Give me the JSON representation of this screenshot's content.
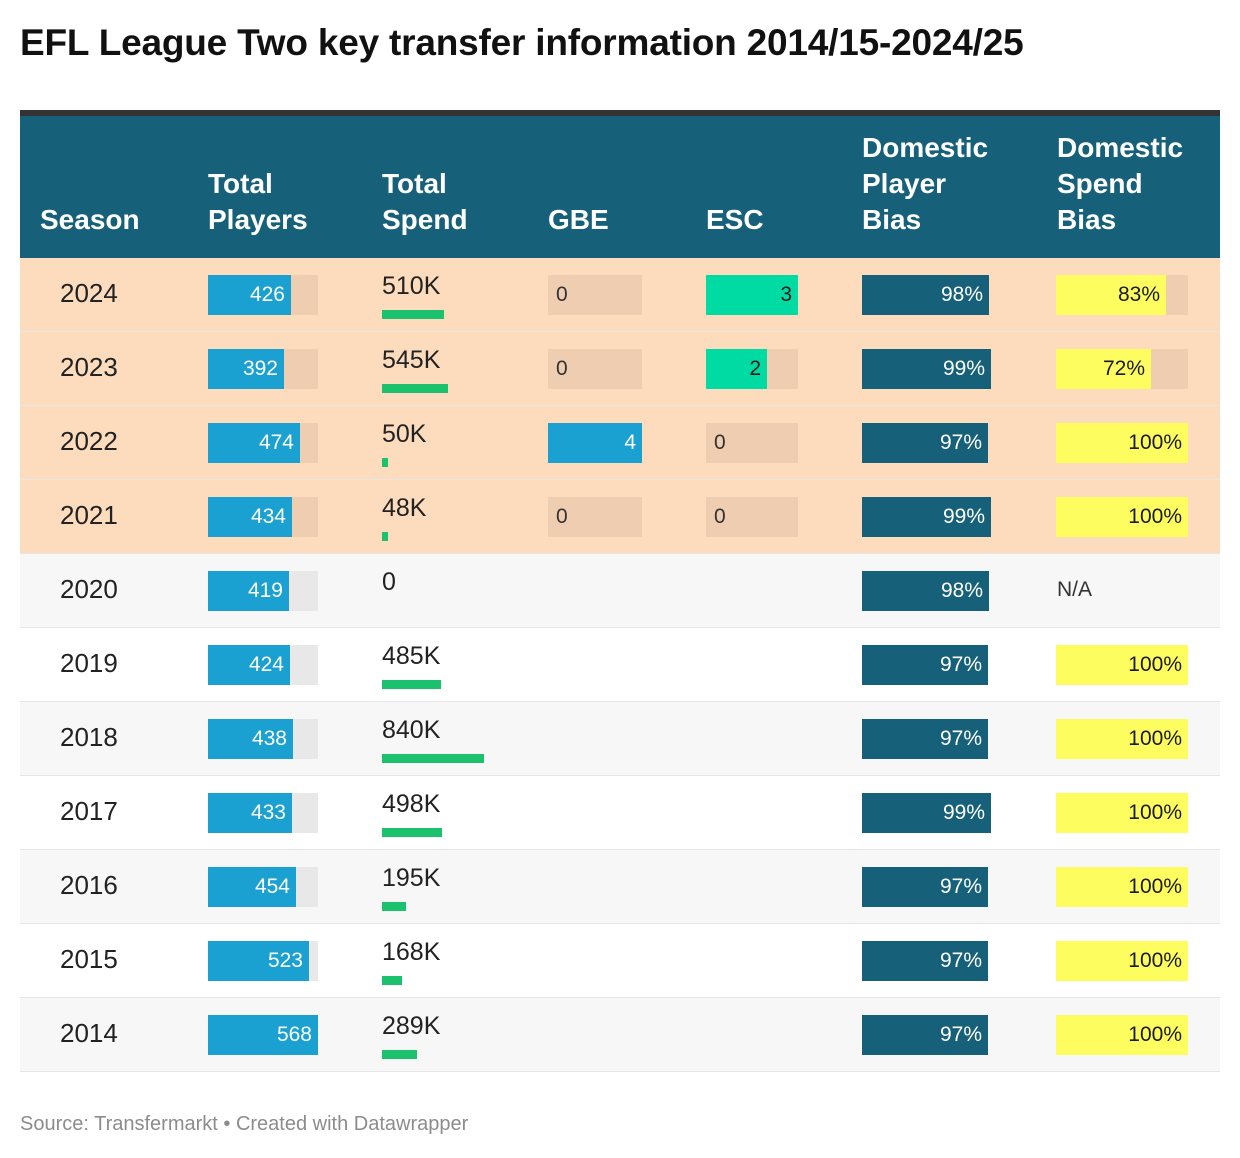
{
  "title": "EFL League Two key transfer information 2014/15-2024/25",
  "source": "Source: Transfermarkt • Created with Datawrapper",
  "columns": {
    "season": "Season",
    "total_players": [
      "Total",
      "Players"
    ],
    "total_spend": [
      "Total",
      "Spend"
    ],
    "gbe": "GBE",
    "esc": "ESC",
    "domestic_player_bias": [
      "Domestic",
      "Player",
      "Bias"
    ],
    "domestic_spend_bias": [
      "Domestic",
      "Spend",
      "Bias"
    ]
  },
  "colors": {
    "header_bg": "#17607a",
    "highlight_row": "#fddcbe",
    "alt_row": "#f7f7f7",
    "players_bar": "#1aa1d1",
    "spend_bar": "#1cc16d",
    "gbe_bar": "#1aa1d1",
    "esc_bar": "#00dba3",
    "player_bias_bar": "#17607a",
    "spend_bias_bar": "#fdfd5f"
  },
  "chart_data": {
    "type": "table",
    "max_total_players": 568,
    "max_total_spend_k": 840,
    "max_gbe": 4,
    "max_esc": 3,
    "rows": [
      {
        "season": "2024",
        "total_players": 426,
        "total_players_label": "426",
        "total_spend_k": 510,
        "total_spend_label": "510K",
        "gbe": 0,
        "gbe_label": "0",
        "esc": 3,
        "esc_label": "3",
        "domestic_player_bias": 98,
        "domestic_player_bias_label": "98%",
        "domestic_spend_bias": 83,
        "domestic_spend_bias_label": "83%",
        "highlight": true
      },
      {
        "season": "2023",
        "total_players": 392,
        "total_players_label": "392",
        "total_spend_k": 545,
        "total_spend_label": "545K",
        "gbe": 0,
        "gbe_label": "0",
        "esc": 2,
        "esc_label": "2",
        "domestic_player_bias": 99,
        "domestic_player_bias_label": "99%",
        "domestic_spend_bias": 72,
        "domestic_spend_bias_label": "72%",
        "highlight": true
      },
      {
        "season": "2022",
        "total_players": 474,
        "total_players_label": "474",
        "total_spend_k": 50,
        "total_spend_label": "50K",
        "gbe": 4,
        "gbe_label": "4",
        "esc": 0,
        "esc_label": "0",
        "domestic_player_bias": 97,
        "domestic_player_bias_label": "97%",
        "domestic_spend_bias": 100,
        "domestic_spend_bias_label": "100%",
        "highlight": true
      },
      {
        "season": "2021",
        "total_players": 434,
        "total_players_label": "434",
        "total_spend_k": 48,
        "total_spend_label": "48K",
        "gbe": 0,
        "gbe_label": "0",
        "esc": 0,
        "esc_label": "0",
        "domestic_player_bias": 99,
        "domestic_player_bias_label": "99%",
        "domestic_spend_bias": 100,
        "domestic_spend_bias_label": "100%",
        "highlight": true
      },
      {
        "season": "2020",
        "total_players": 419,
        "total_players_label": "419",
        "total_spend_k": 0,
        "total_spend_label": "0",
        "gbe": null,
        "esc": null,
        "domestic_player_bias": 98,
        "domestic_player_bias_label": "98%",
        "domestic_spend_bias": null,
        "domestic_spend_bias_label": "N/A",
        "highlight": false
      },
      {
        "season": "2019",
        "total_players": 424,
        "total_players_label": "424",
        "total_spend_k": 485,
        "total_spend_label": "485K",
        "gbe": null,
        "esc": null,
        "domestic_player_bias": 97,
        "domestic_player_bias_label": "97%",
        "domestic_spend_bias": 100,
        "domestic_spend_bias_label": "100%",
        "highlight": false
      },
      {
        "season": "2018",
        "total_players": 438,
        "total_players_label": "438",
        "total_spend_k": 840,
        "total_spend_label": "840K",
        "gbe": null,
        "esc": null,
        "domestic_player_bias": 97,
        "domestic_player_bias_label": "97%",
        "domestic_spend_bias": 100,
        "domestic_spend_bias_label": "100%",
        "highlight": false
      },
      {
        "season": "2017",
        "total_players": 433,
        "total_players_label": "433",
        "total_spend_k": 498,
        "total_spend_label": "498K",
        "gbe": null,
        "esc": null,
        "domestic_player_bias": 99,
        "domestic_player_bias_label": "99%",
        "domestic_spend_bias": 100,
        "domestic_spend_bias_label": "100%",
        "highlight": false
      },
      {
        "season": "2016",
        "total_players": 454,
        "total_players_label": "454",
        "total_spend_k": 195,
        "total_spend_label": "195K",
        "gbe": null,
        "esc": null,
        "domestic_player_bias": 97,
        "domestic_player_bias_label": "97%",
        "domestic_spend_bias": 100,
        "domestic_spend_bias_label": "100%",
        "highlight": false
      },
      {
        "season": "2015",
        "total_players": 523,
        "total_players_label": "523",
        "total_spend_k": 168,
        "total_spend_label": "168K",
        "gbe": null,
        "esc": null,
        "domestic_player_bias": 97,
        "domestic_player_bias_label": "97%",
        "domestic_spend_bias": 100,
        "domestic_spend_bias_label": "100%",
        "highlight": false
      },
      {
        "season": "2014",
        "total_players": 568,
        "total_players_label": "568",
        "total_spend_k": 289,
        "total_spend_label": "289K",
        "gbe": null,
        "esc": null,
        "domestic_player_bias": 97,
        "domestic_player_bias_label": "97%",
        "domestic_spend_bias": 100,
        "domestic_spend_bias_label": "100%",
        "highlight": false
      }
    ]
  }
}
